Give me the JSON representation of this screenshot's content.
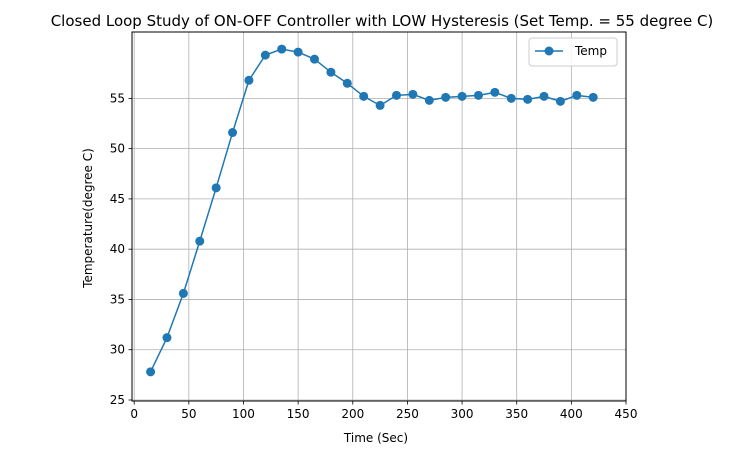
{
  "chart_data": {
    "type": "line",
    "title": "Closed Loop Study of ON-OFF Controller with LOW Hysteresis (Set Temp. = 55 degree C)",
    "xlabel": "Time (Sec)",
    "ylabel": "Temperature(degree C)",
    "xlim": [
      -2,
      450
    ],
    "ylim": [
      24.9,
      61.6
    ],
    "xticks": [
      0,
      50,
      100,
      150,
      200,
      250,
      300,
      350,
      400,
      450
    ],
    "yticks": [
      25,
      30,
      35,
      40,
      45,
      50,
      55
    ],
    "grid": true,
    "legend_position": "top-right",
    "series": [
      {
        "name": "Temp",
        "color": "#1f77b4",
        "marker": "circle",
        "x": [
          15,
          30,
          45,
          60,
          75,
          90,
          105,
          120,
          135,
          150,
          165,
          180,
          195,
          210,
          225,
          240,
          255,
          270,
          285,
          300,
          315,
          330,
          345,
          360,
          375,
          390,
          405,
          420
        ],
        "y": [
          27.8,
          31.2,
          35.6,
          40.8,
          46.1,
          51.6,
          56.8,
          59.3,
          59.9,
          59.6,
          58.9,
          57.6,
          56.5,
          55.2,
          54.3,
          55.3,
          55.4,
          54.8,
          55.1,
          55.2,
          55.3,
          55.6,
          55.0,
          54.9,
          55.2,
          54.7,
          55.3,
          55.1
        ]
      }
    ]
  }
}
